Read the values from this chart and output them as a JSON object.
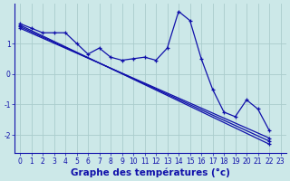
{
  "background_color": "#cce8e8",
  "line_color": "#1010aa",
  "grid_color": "#aacccc",
  "xlabel": "Graphe des températures (°c)",
  "xlabel_fontsize": 7.5,
  "tick_fontsize": 5.5,
  "xlim": [
    -0.5,
    23.5
  ],
  "ylim": [
    -2.6,
    2.3
  ],
  "yticks": [
    -2,
    -1,
    0,
    1
  ],
  "xticks": [
    0,
    1,
    2,
    3,
    4,
    5,
    6,
    7,
    8,
    9,
    10,
    11,
    12,
    13,
    14,
    15,
    16,
    17,
    18,
    19,
    20,
    21,
    22,
    23
  ],
  "wiggly": {
    "x": [
      0,
      1,
      2,
      3,
      4,
      5,
      6,
      7,
      8,
      9,
      10,
      11,
      12,
      13,
      14,
      15,
      16,
      17,
      18,
      19,
      20,
      21,
      22
    ],
    "y": [
      1.65,
      1.5,
      1.35,
      1.35,
      1.35,
      1.0,
      0.65,
      0.85,
      0.55,
      0.45,
      0.5,
      0.55,
      0.45,
      0.85,
      2.05,
      1.75,
      0.5,
      -0.5,
      -1.25,
      -1.4,
      -0.85,
      -1.15,
      -1.85
    ]
  },
  "trend_lines": [
    {
      "x": [
        0,
        22
      ],
      "y": [
        1.6,
        -2.3
      ]
    },
    {
      "x": [
        0,
        22
      ],
      "y": [
        1.5,
        -2.1
      ]
    },
    {
      "x": [
        0,
        22
      ],
      "y": [
        1.55,
        -2.2
      ]
    }
  ]
}
